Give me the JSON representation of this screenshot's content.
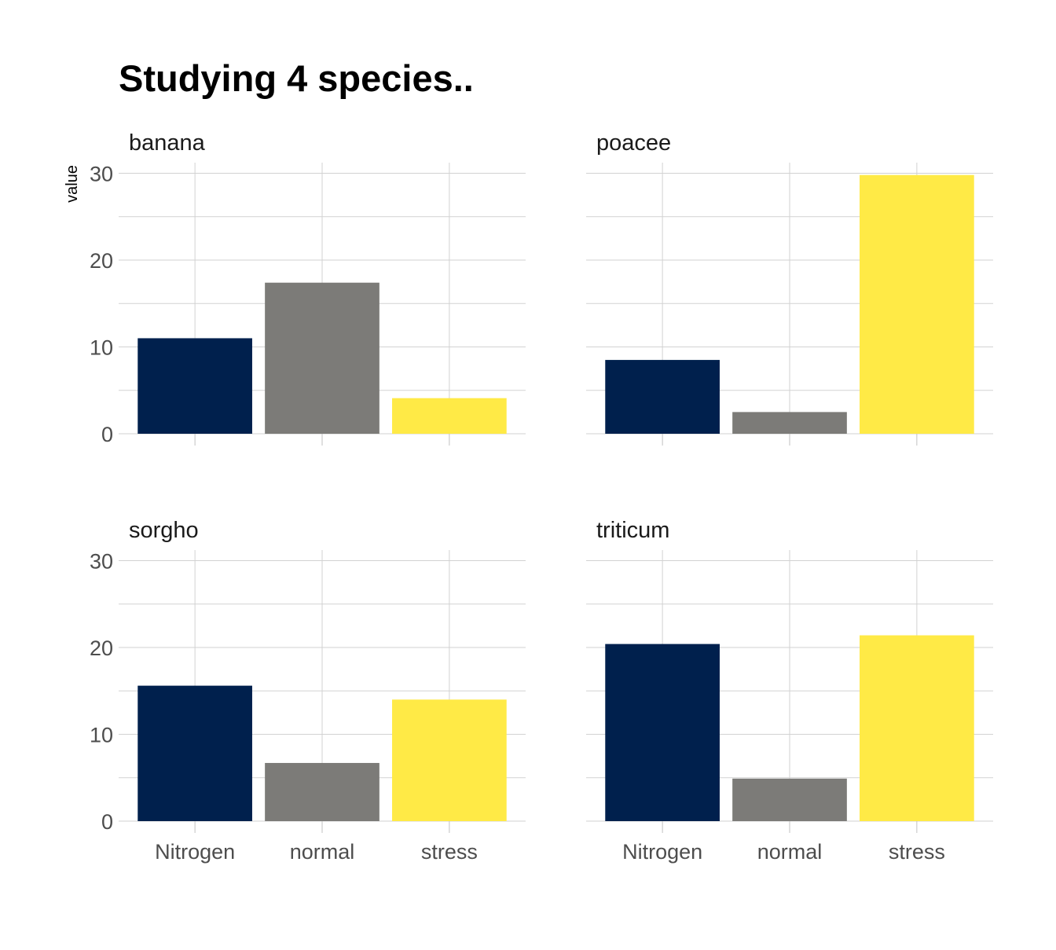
{
  "chart_data": {
    "type": "bar",
    "title": "Studying 4 species..",
    "ylabel": "value",
    "xlabel": "",
    "ylim": [
      0,
      31
    ],
    "y_ticks": [
      0,
      10,
      20,
      30
    ],
    "categories": [
      "Nitrogen",
      "normal",
      "stress"
    ],
    "colors": {
      "Nitrogen": "#00204D",
      "normal": "#7C7B78",
      "stress": "#FFEA46"
    },
    "grid": true,
    "facets": [
      {
        "name": "banana",
        "values": [
          11.0,
          17.4,
          4.1
        ]
      },
      {
        "name": "poacee",
        "values": [
          8.5,
          2.5,
          29.8
        ]
      },
      {
        "name": "sorgho",
        "values": [
          15.6,
          6.7,
          14.0
        ]
      },
      {
        "name": "triticum",
        "values": [
          20.4,
          4.9,
          21.4
        ]
      }
    ]
  }
}
